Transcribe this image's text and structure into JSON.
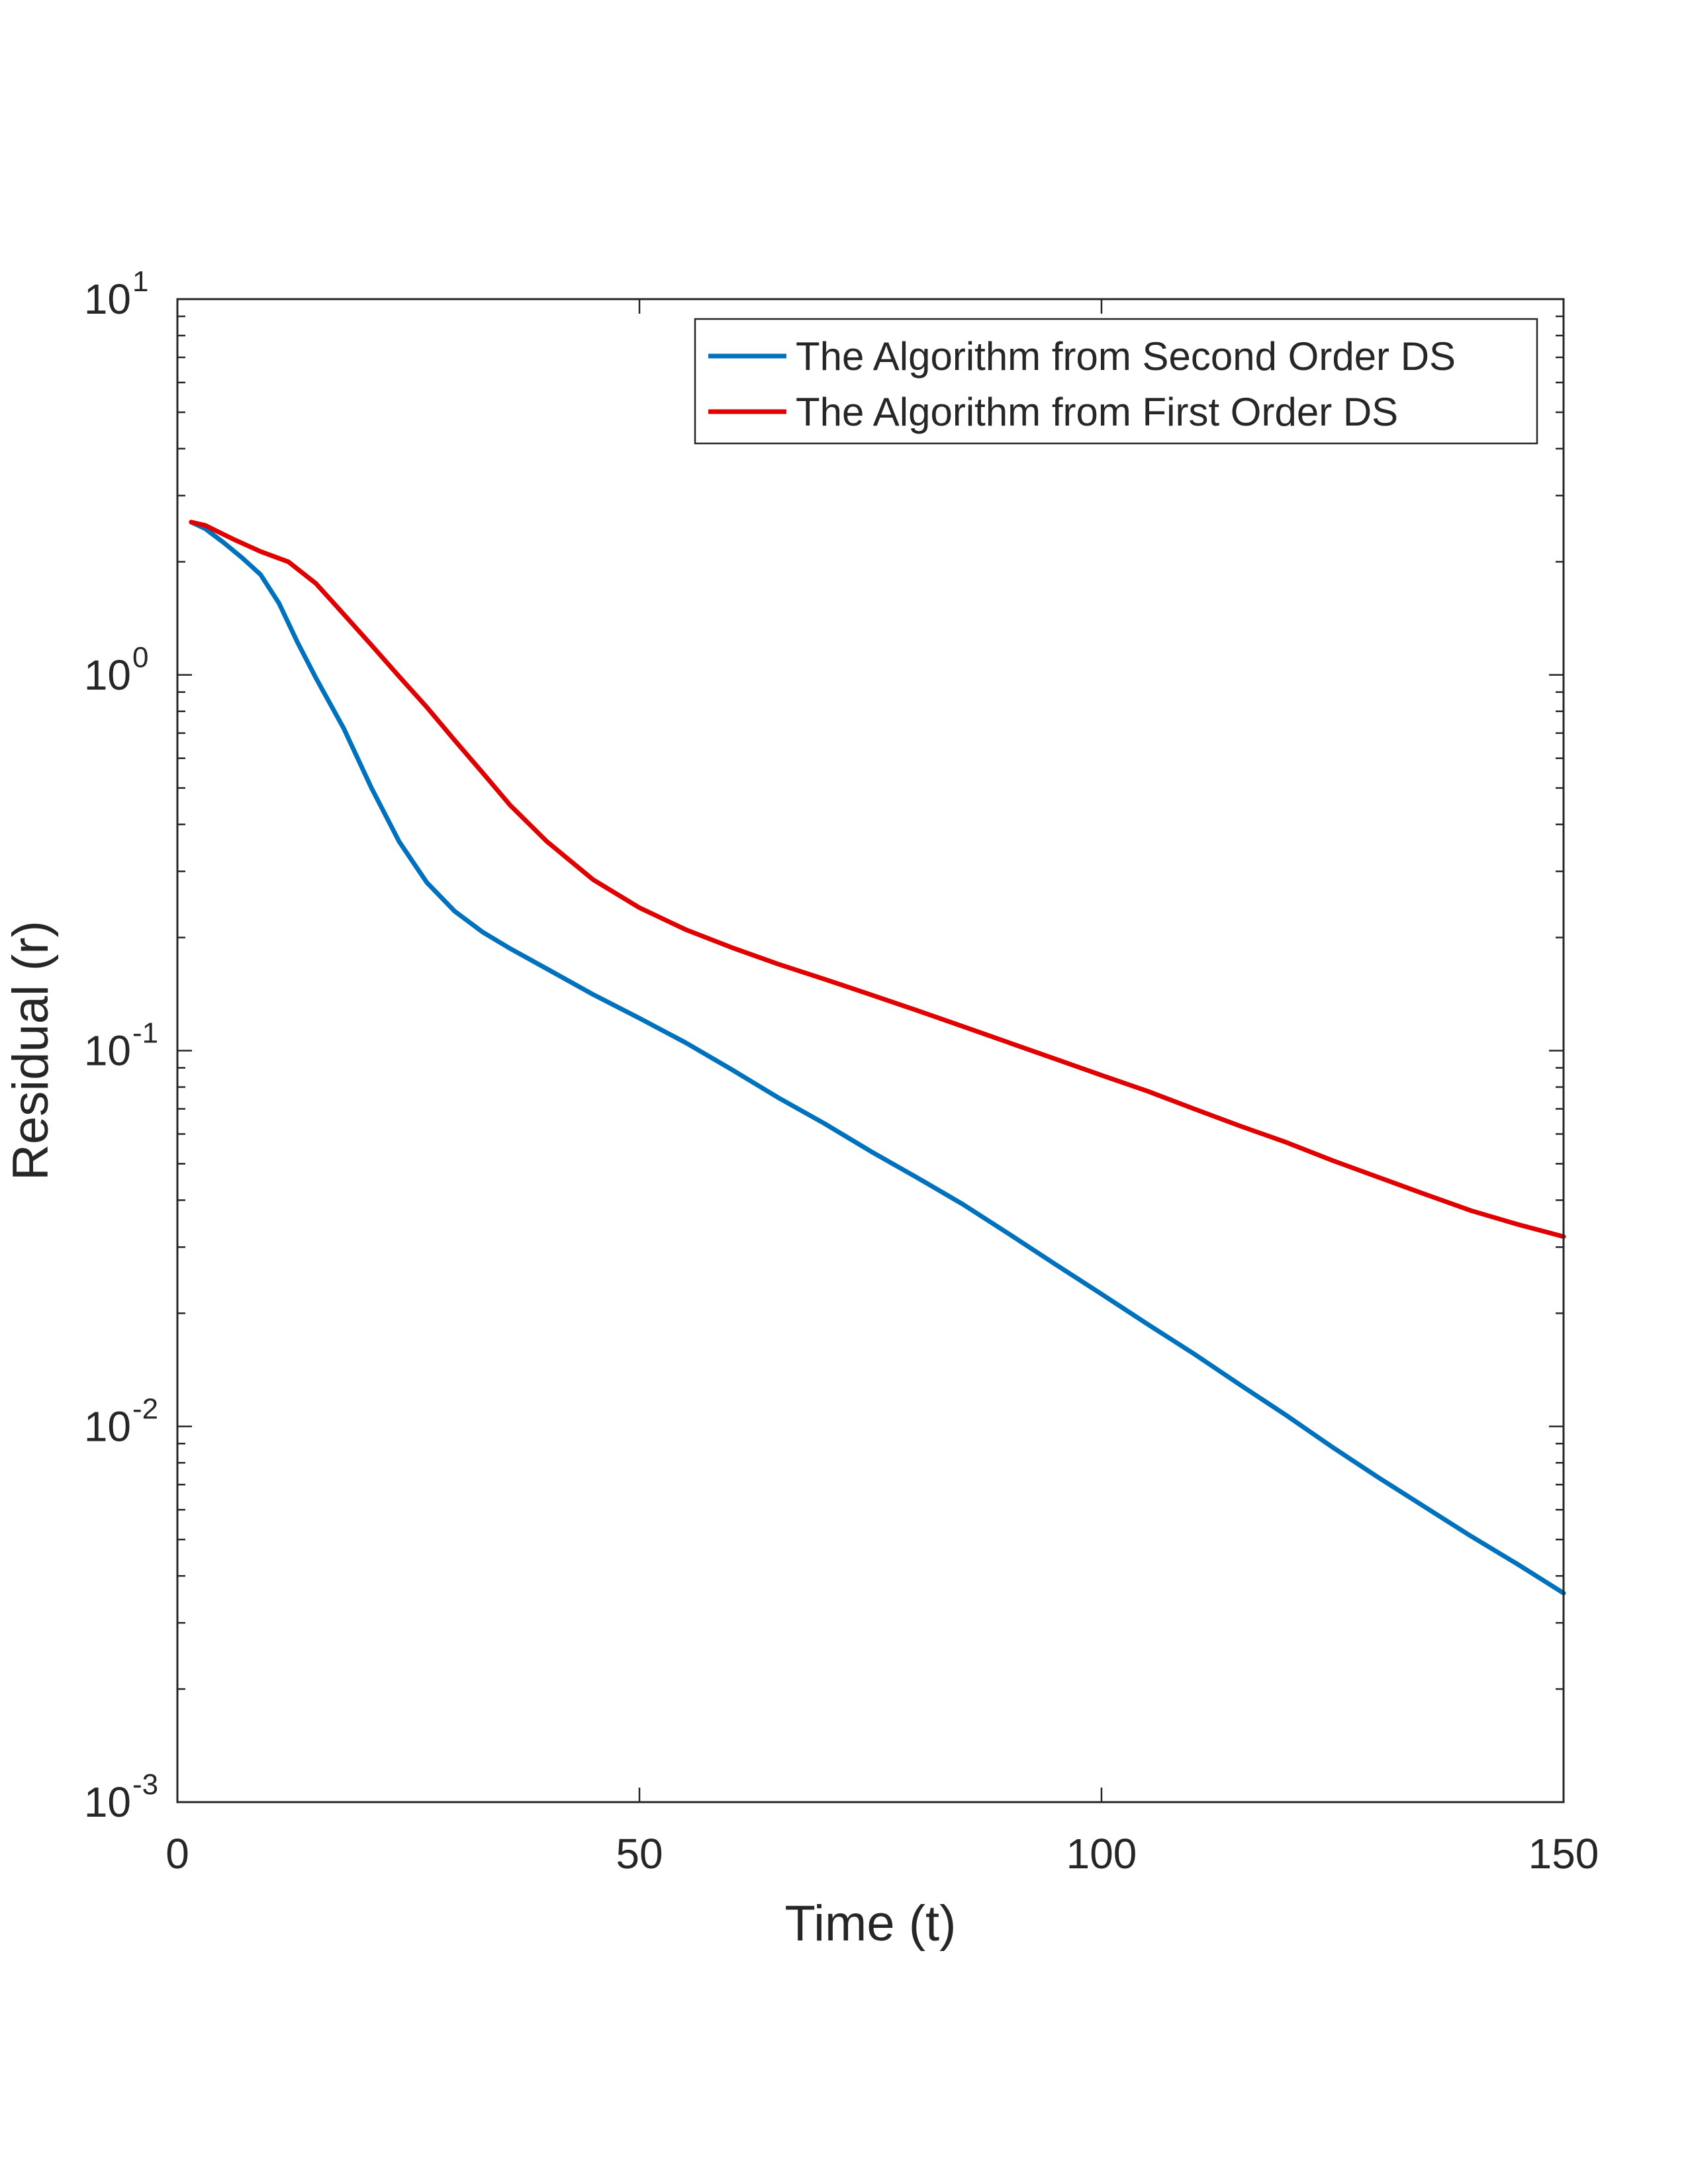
{
  "chart_data": {
    "type": "line",
    "xlabel": "Time (t)",
    "ylabel": "Residual (r)",
    "xlim": [
      0,
      150
    ],
    "ylim": [
      0.001,
      10
    ],
    "yscale": "log",
    "grid": false,
    "legend_position": "top-right",
    "xticks": [
      {
        "value": 0,
        "label": "0"
      },
      {
        "value": 50,
        "label": "50"
      },
      {
        "value": 100,
        "label": "100"
      },
      {
        "value": 150,
        "label": "150"
      }
    ],
    "yticks": [
      {
        "value": 0.001,
        "base": "10",
        "exponent": "-3"
      },
      {
        "value": 0.01,
        "base": "10",
        "exponent": "-2"
      },
      {
        "value": 0.1,
        "base": "10",
        "exponent": "-1"
      },
      {
        "value": 1,
        "base": "10",
        "exponent": "0"
      },
      {
        "value": 10,
        "base": "10",
        "exponent": "1"
      }
    ],
    "series": [
      {
        "name": "The Algorithm from Second Order DS",
        "color": "#0072BD",
        "x": [
          1.5,
          3,
          5,
          7,
          9,
          11,
          13,
          15,
          18,
          21,
          24,
          27,
          30,
          33,
          36,
          40,
          45,
          50,
          55,
          60,
          65,
          70,
          75,
          80,
          85,
          90,
          95,
          100,
          105,
          110,
          115,
          120,
          125,
          130,
          135,
          140,
          145,
          150
        ],
        "y": [
          2.55,
          2.45,
          2.25,
          2.05,
          1.85,
          1.55,
          1.22,
          0.98,
          0.72,
          0.5,
          0.36,
          0.28,
          0.235,
          0.207,
          0.187,
          0.165,
          0.141,
          0.122,
          0.105,
          0.089,
          0.075,
          0.064,
          0.054,
          0.046,
          0.039,
          0.0325,
          0.027,
          0.0225,
          0.0187,
          0.0156,
          0.0129,
          0.0107,
          0.0088,
          0.0073,
          0.0061,
          0.0051,
          0.0043,
          0.0036
        ]
      },
      {
        "name": "The Algorithm from First Order DS",
        "color": "#E00000",
        "x": [
          1.5,
          3,
          6,
          9,
          12,
          15,
          18,
          21,
          24,
          27,
          30,
          33,
          36,
          40,
          45,
          50,
          55,
          60,
          65,
          70,
          75,
          80,
          85,
          90,
          95,
          100,
          105,
          110,
          115,
          120,
          125,
          130,
          135,
          140,
          145,
          150
        ],
        "y": [
          2.55,
          2.5,
          2.3,
          2.13,
          2.0,
          1.75,
          1.45,
          1.2,
          0.99,
          0.82,
          0.67,
          0.55,
          0.45,
          0.36,
          0.285,
          0.24,
          0.21,
          0.188,
          0.17,
          0.155,
          0.141,
          0.128,
          0.116,
          0.105,
          0.095,
          0.086,
          0.078,
          0.07,
          0.063,
          0.057,
          0.051,
          0.046,
          0.0415,
          0.0375,
          0.0345,
          0.032
        ]
      }
    ]
  }
}
